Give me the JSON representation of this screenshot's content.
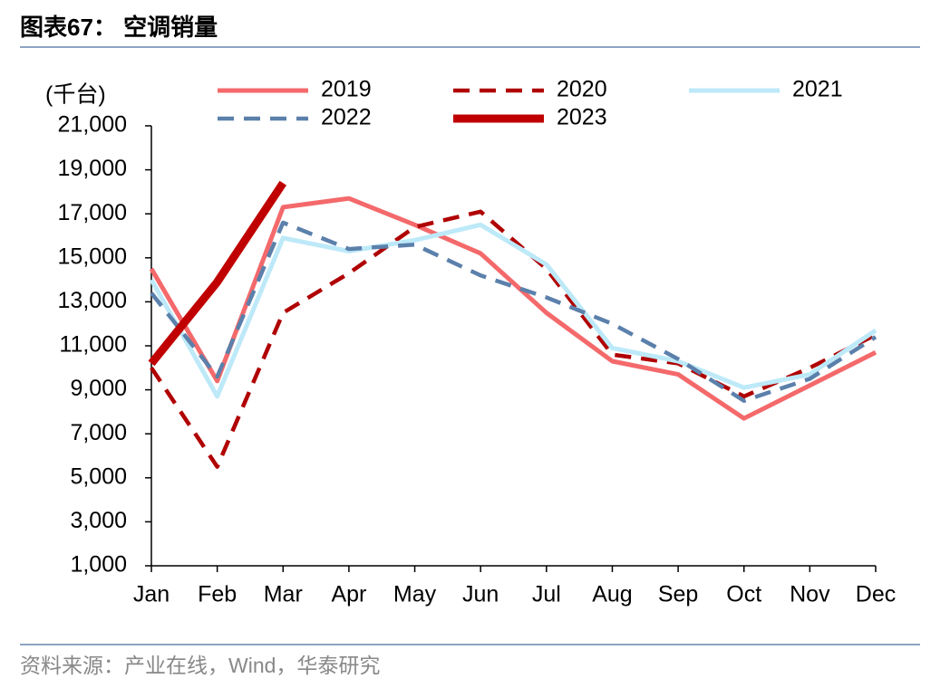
{
  "header": {
    "title": "图表67： 空调销量"
  },
  "chart_data": {
    "type": "line",
    "y_label": "(千台)",
    "categories": [
      "Jan",
      "Feb",
      "Mar",
      "Apr",
      "May",
      "Jun",
      "Jul",
      "Aug",
      "Sep",
      "Oct",
      "Nov",
      "Dec"
    ],
    "series": [
      {
        "name": "2019",
        "color": "#f4696b",
        "style": "solid",
        "values": [
          14500,
          9400,
          17300,
          17700,
          16500,
          15200,
          12500,
          10300,
          9700,
          7700,
          9200,
          10700
        ]
      },
      {
        "name": "2020",
        "color": "#b00000",
        "style": "dashed",
        "values": [
          10000,
          5500,
          12500,
          14300,
          16400,
          17100,
          14500,
          10600,
          10200,
          8700,
          10000,
          11500
        ]
      },
      {
        "name": "2021",
        "color": "#bde9f8",
        "style": "solid",
        "values": [
          14000,
          8700,
          15900,
          15300,
          15800,
          16500,
          14700,
          10900,
          10300,
          9100,
          9700,
          11700
        ]
      },
      {
        "name": "2022",
        "color": "#5b80ab",
        "style": "dashed",
        "values": [
          13400,
          9600,
          16600,
          15400,
          15600,
          14200,
          13200,
          12000,
          10400,
          8500,
          9500,
          11400
        ]
      },
      {
        "name": "2023",
        "color": "#c00000",
        "style": "bold",
        "values": [
          10200,
          13900,
          18400,
          null,
          null,
          null,
          null,
          null,
          null,
          null,
          null,
          null
        ]
      }
    ],
    "ylim": [
      1000,
      21000
    ],
    "yticks": [
      {
        "value": 1000,
        "label": "1,000"
      },
      {
        "value": 3000,
        "label": "3,000"
      },
      {
        "value": 5000,
        "label": "5,000"
      },
      {
        "value": 7000,
        "label": "7,000"
      },
      {
        "value": 9000,
        "label": "9,000"
      },
      {
        "value": 11000,
        "label": "11,000"
      },
      {
        "value": 13000,
        "label": "13,000"
      },
      {
        "value": 15000,
        "label": "15,000"
      },
      {
        "value": 17000,
        "label": "17,000"
      },
      {
        "value": 19000,
        "label": "19,000"
      },
      {
        "value": 21000,
        "label": "21,000"
      }
    ],
    "legend": "top"
  },
  "footer": {
    "source": "资料来源：产业在线，Wind，华泰研究"
  }
}
